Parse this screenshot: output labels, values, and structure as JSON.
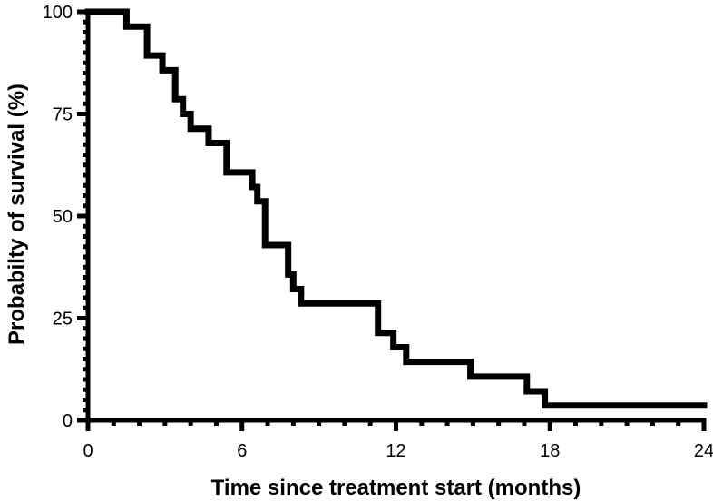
{
  "chart_data": {
    "type": "line",
    "subtype": "step",
    "title": "",
    "xlabel": "Time since treatment start (months)",
    "ylabel": "Probabilty of survival (%)",
    "xlim": [
      0,
      24
    ],
    "ylim": [
      0,
      100
    ],
    "x_major_ticks": [
      0,
      6,
      12,
      18,
      24
    ],
    "x_major_tick_labels": [
      "0",
      "6",
      "12",
      "18",
      "24"
    ],
    "x_minor_tick_step": 1,
    "y_major_ticks": [
      0,
      25,
      50,
      75,
      100
    ],
    "y_major_tick_labels": [
      "0",
      "25",
      "50",
      "75",
      "100"
    ],
    "y_minor_tick_step": 2.5,
    "grid": false,
    "legend": "none",
    "series": [
      {
        "x": [
          0,
          1.5,
          2.3,
          2.9,
          3.4,
          3.7,
          4.0,
          4.7,
          5.4,
          6.4,
          6.6,
          6.9,
          7.8,
          8.0,
          8.3,
          11.3,
          11.9,
          12.4,
          14.9,
          17.1,
          17.8,
          24.0
        ],
        "y": [
          100,
          96.4,
          89.3,
          85.7,
          78.6,
          75.0,
          71.4,
          67.9,
          60.7,
          57.1,
          53.6,
          42.9,
          35.7,
          32.1,
          28.6,
          21.4,
          17.9,
          14.3,
          10.7,
          7.1,
          3.6,
          3.6
        ]
      }
    ]
  }
}
